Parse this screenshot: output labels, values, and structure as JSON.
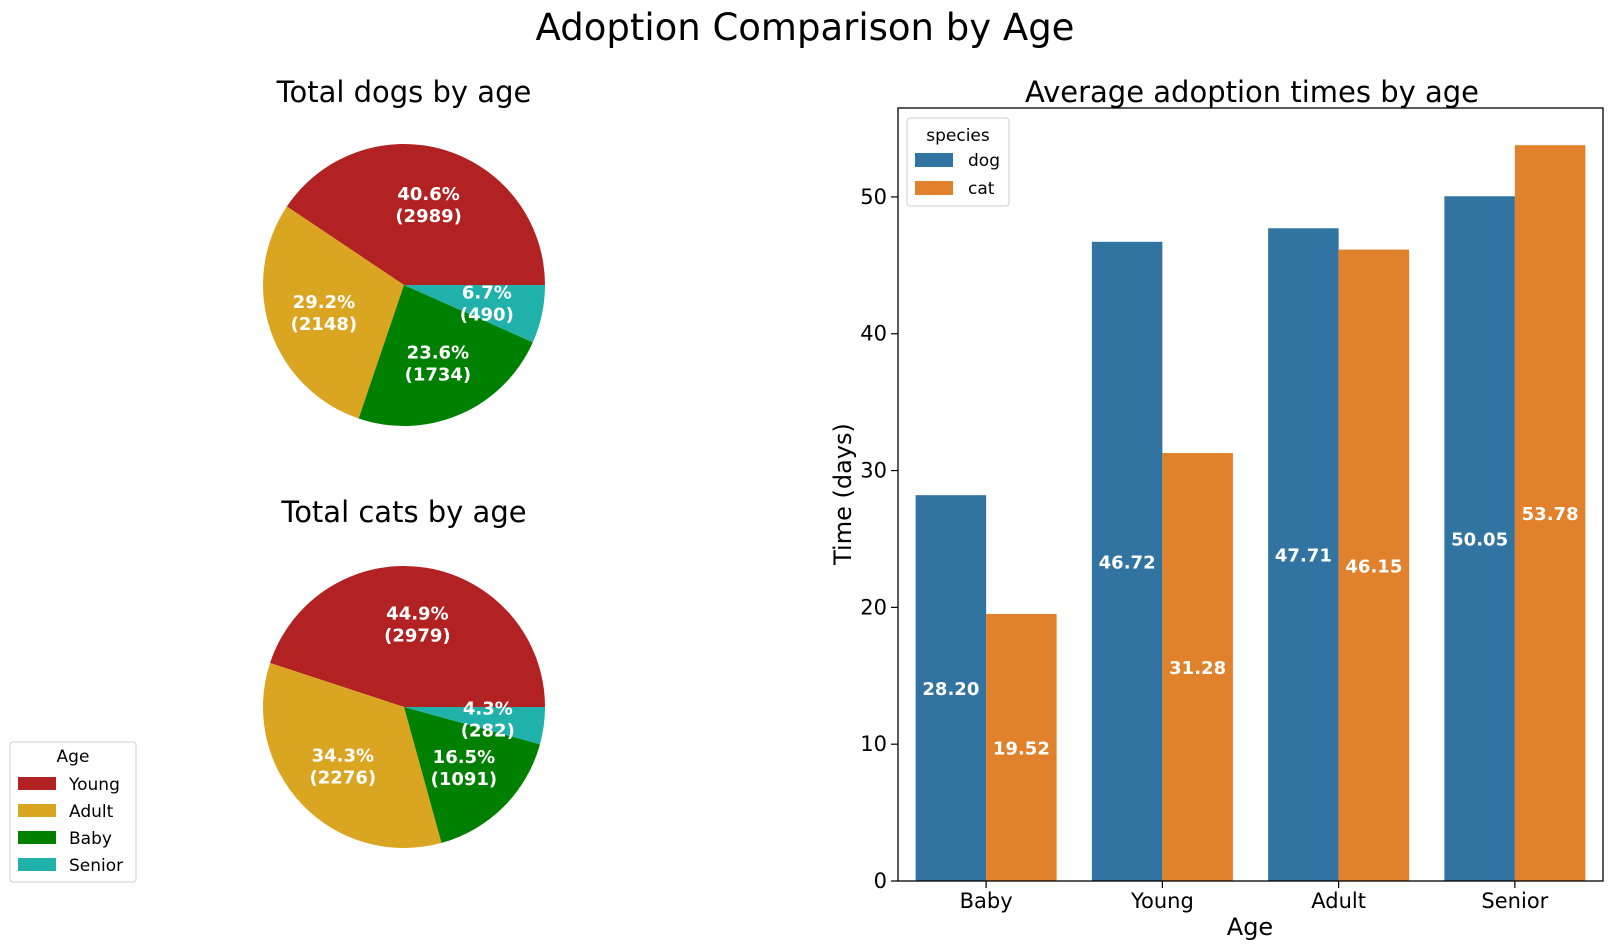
{
  "title": "Adoption Comparison by Age",
  "colors": {
    "Young": "#b22222",
    "Adult": "#daa520",
    "Baby": "#008000",
    "Senior": "#20b2aa",
    "dog": "#3274a1",
    "cat": "#e1812c"
  },
  "age_legend": {
    "title": "Age",
    "items": [
      "Young",
      "Adult",
      "Baby",
      "Senior"
    ]
  },
  "chart_data": [
    {
      "type": "pie",
      "title": "Total dogs by age",
      "categories": [
        "Young",
        "Adult",
        "Baby",
        "Senior"
      ],
      "values": [
        2989,
        2148,
        1734,
        490
      ],
      "labels": [
        {
          "pct": "40.6%",
          "count": "(2989)"
        },
        {
          "pct": "29.2%",
          "count": "(2148)"
        },
        {
          "pct": "23.6%",
          "count": "(1734)"
        },
        {
          "pct": "6.7%",
          "count": "(490)"
        }
      ]
    },
    {
      "type": "pie",
      "title": "Total cats by age",
      "categories": [
        "Young",
        "Adult",
        "Baby",
        "Senior"
      ],
      "values": [
        2979,
        2276,
        1091,
        282
      ],
      "labels": [
        {
          "pct": "44.9%",
          "count": "(2979)"
        },
        {
          "pct": "34.3%",
          "count": "(2276)"
        },
        {
          "pct": "16.5%",
          "count": "(1091)"
        },
        {
          "pct": "4.3%",
          "count": "(282)"
        }
      ]
    },
    {
      "type": "bar",
      "title": "Average adoption times by age",
      "categories": [
        "Baby",
        "Young",
        "Adult",
        "Senior"
      ],
      "series": [
        {
          "name": "dog",
          "values": [
            28.2,
            46.72,
            47.71,
            50.05
          ],
          "labels": [
            "28.20",
            "46.72",
            "47.71",
            "50.05"
          ]
        },
        {
          "name": "cat",
          "values": [
            19.52,
            31.28,
            46.15,
            53.78
          ],
          "labels": [
            "19.52",
            "31.28",
            "46.15",
            "53.78"
          ]
        }
      ],
      "xlabel": "Age",
      "ylabel": "Time (days)",
      "ylim": [
        0,
        56.5
      ],
      "yticks": [
        0,
        10,
        20,
        30,
        40,
        50
      ],
      "legend": {
        "title": "species",
        "position": "top-left"
      },
      "grid": false
    }
  ]
}
